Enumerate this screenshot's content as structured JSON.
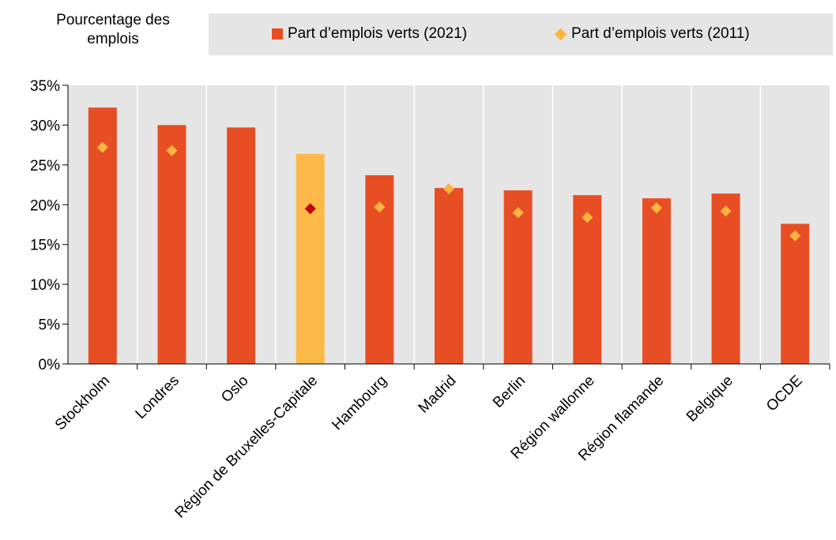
{
  "chart_data": {
    "type": "bar",
    "ylabel": "Pourcentage des emplois",
    "categories": [
      "Stockholm",
      "Londres",
      "Oslo",
      "Région de Bruxelles-Capitale",
      "Hambourg",
      "Madrid",
      "Berlin",
      "Région wallonne",
      "Région flamande",
      "Belgique",
      "OCDE"
    ],
    "series": [
      {
        "name": "Part d’emplois verts (2021)",
        "type": "bar",
        "values": [
          32.2,
          30.0,
          29.7,
          26.4,
          23.7,
          22.1,
          21.8,
          21.2,
          20.8,
          21.4,
          17.6
        ]
      },
      {
        "name": "Part d’emplois verts (2011)",
        "type": "marker",
        "values": [
          27.2,
          26.8,
          null,
          19.5,
          19.7,
          22.0,
          19.0,
          18.4,
          19.6,
          19.2,
          16.1
        ]
      }
    ],
    "highlight_index": 3,
    "ylim": [
      0,
      35
    ],
    "yticks": [
      "0%",
      "5%",
      "10%",
      "15%",
      "20%",
      "25%",
      "30%",
      "35%"
    ],
    "grid": true,
    "legend_position": "top",
    "colors": {
      "bar": "#e84e24",
      "bar_highlight": "#fdb947",
      "marker": "#fcb53f",
      "marker_highlight": "#c00000",
      "plot_bg": "#e5e5e5",
      "grid": "#ffffff"
    }
  }
}
